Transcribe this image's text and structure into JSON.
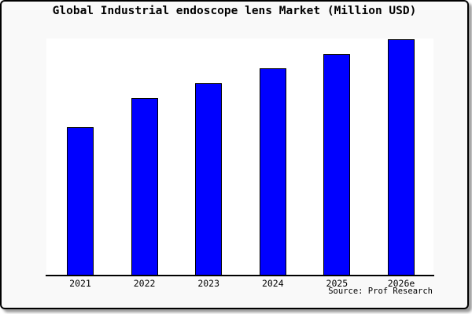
{
  "chart_data": {
    "type": "bar",
    "title": "Global Industrial endoscope lens Market (Million USD)",
    "categories": [
      "2021",
      "2022",
      "2023",
      "2024",
      "2025",
      "2026e"
    ],
    "values": [
      188,
      225,
      244,
      263,
      281,
      300
    ],
    "ylim": [
      0,
      301
    ],
    "xlabel": "",
    "ylabel": "",
    "grid": false,
    "legend": false,
    "y_axis_visible": false,
    "bar_color": "#0000ff",
    "bar_border_color": "#000000"
  },
  "source_note": "Source: Prof Research",
  "colors": {
    "card_background": "#f9f9f9",
    "plot_background": "#ffffff",
    "card_border": "#000000",
    "card_shadow": "#9c9c9c",
    "title_text": "#000000",
    "tick_text": "#000000"
  }
}
